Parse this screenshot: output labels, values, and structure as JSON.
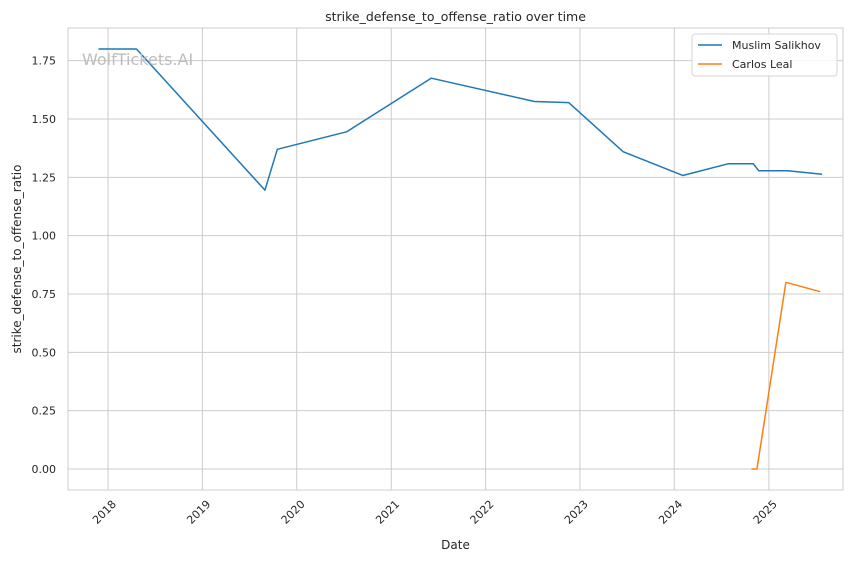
{
  "chart_data": {
    "type": "line",
    "title": "strike_defense_to_offense_ratio over time",
    "xlabel": "Date",
    "ylabel": "strike_defense_to_offense_ratio",
    "watermark": "WolfTickets.AI",
    "x_ticks": [
      "2018",
      "2019",
      "2020",
      "2021",
      "2022",
      "2023",
      "2024",
      "2025"
    ],
    "y_ticks": [
      "0.00",
      "0.25",
      "0.50",
      "0.75",
      "1.00",
      "1.25",
      "1.50",
      "1.75"
    ],
    "xlim": [
      "2017-07-30",
      "2025-10-15"
    ],
    "ylim": [
      -0.09,
      1.89
    ],
    "grid": true,
    "legend_position": "top-right",
    "series": [
      {
        "name": "Muslim Salikhov",
        "color": "#1f77b4",
        "points": [
          {
            "x": "2017-11-25",
            "y": 1.8
          },
          {
            "x": "2018-04-21",
            "y": 1.8
          },
          {
            "x": "2019-08-31",
            "y": 1.195
          },
          {
            "x": "2019-10-18",
            "y": 1.37
          },
          {
            "x": "2020-07-12",
            "y": 1.445
          },
          {
            "x": "2021-06-05",
            "y": 1.675
          },
          {
            "x": "2022-07-09",
            "y": 1.575
          },
          {
            "x": "2022-11-19",
            "y": 1.57
          },
          {
            "x": "2023-06-17",
            "y": 1.36
          },
          {
            "x": "2024-02-03",
            "y": 1.258
          },
          {
            "x": "2024-07-27",
            "y": 1.308
          },
          {
            "x": "2024-11-02",
            "y": 1.308
          },
          {
            "x": "2024-11-23",
            "y": 1.278
          },
          {
            "x": "2025-03-15",
            "y": 1.278
          },
          {
            "x": "2025-07-26",
            "y": 1.263
          }
        ]
      },
      {
        "name": "Carlos Leal",
        "color": "#ff7f0e",
        "points": [
          {
            "x": "2024-10-26",
            "y": 0.0
          },
          {
            "x": "2024-11-16",
            "y": 0.0
          },
          {
            "x": "2025-03-08",
            "y": 0.8
          },
          {
            "x": "2025-07-19",
            "y": 0.76
          }
        ]
      }
    ]
  }
}
